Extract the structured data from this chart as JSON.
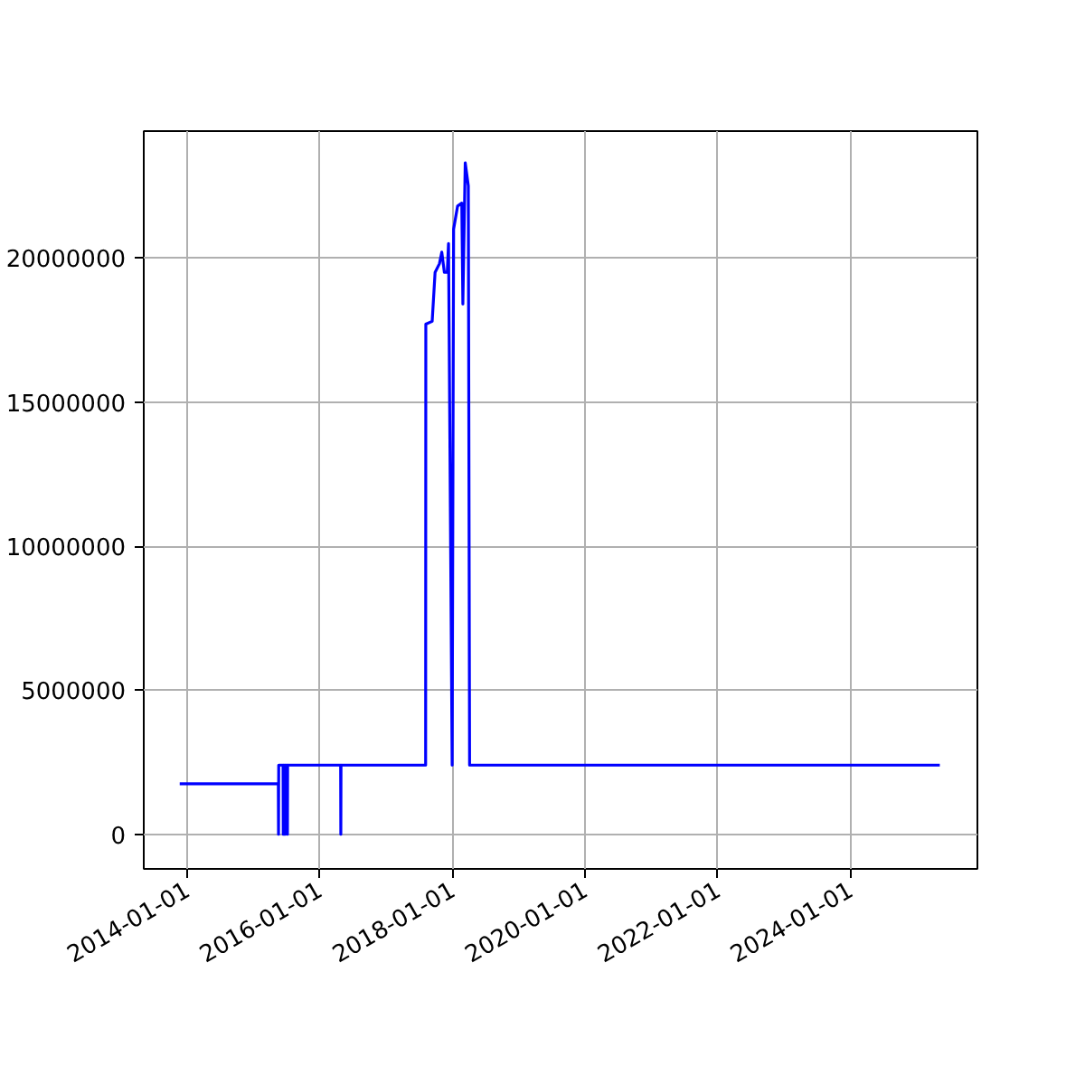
{
  "chart_data": {
    "type": "line",
    "x": [
      "2013-11-22",
      "2015-05-19",
      "2015-05-20",
      "2015-05-21",
      "2015-06-14",
      "2015-06-15",
      "2015-06-16",
      "2015-06-25",
      "2015-06-26",
      "2015-06-27",
      "2015-07-07",
      "2015-07-08",
      "2015-07-09",
      "2016-04-26",
      "2016-04-27",
      "2016-04-28",
      "2017-08-07",
      "2017-08-08",
      "2017-09-12",
      "2017-09-28",
      "2017-10-22",
      "2017-11-04",
      "2017-11-18",
      "2017-12-04",
      "2017-12-11",
      "2017-12-31",
      "2018-01-08",
      "2018-01-30",
      "2018-02-22",
      "2018-02-28",
      "2018-03-13",
      "2018-03-30",
      "2018-04-06",
      "2025-05-08"
    ],
    "series": [
      {
        "color": "#0000ff",
        "values": [
          1750000,
          1750000,
          0,
          2400000,
          2400000,
          0,
          2400000,
          2400000,
          0,
          2400000,
          2400000,
          0,
          2400000,
          2400000,
          0,
          2400000,
          2400000,
          17700000,
          17800000,
          19500000,
          19800000,
          20200000,
          19500000,
          19500000,
          20500000,
          2400000,
          21000000,
          21800000,
          21900000,
          18400000,
          23300000,
          22500000,
          2400000,
          2400000
        ]
      }
    ],
    "xlim": [
      "2013-05-08",
      "2025-12-01"
    ],
    "xticks": [
      "2014-01-01",
      "2016-01-01",
      "2018-01-01",
      "2020-01-01",
      "2022-01-01",
      "2024-01-01"
    ],
    "ylim": [
      -1200000,
      24400000
    ],
    "yticks": [
      0,
      5000000,
      10000000,
      15000000,
      20000000
    ],
    "grid": true,
    "marker": "none",
    "line_style": "solid"
  }
}
